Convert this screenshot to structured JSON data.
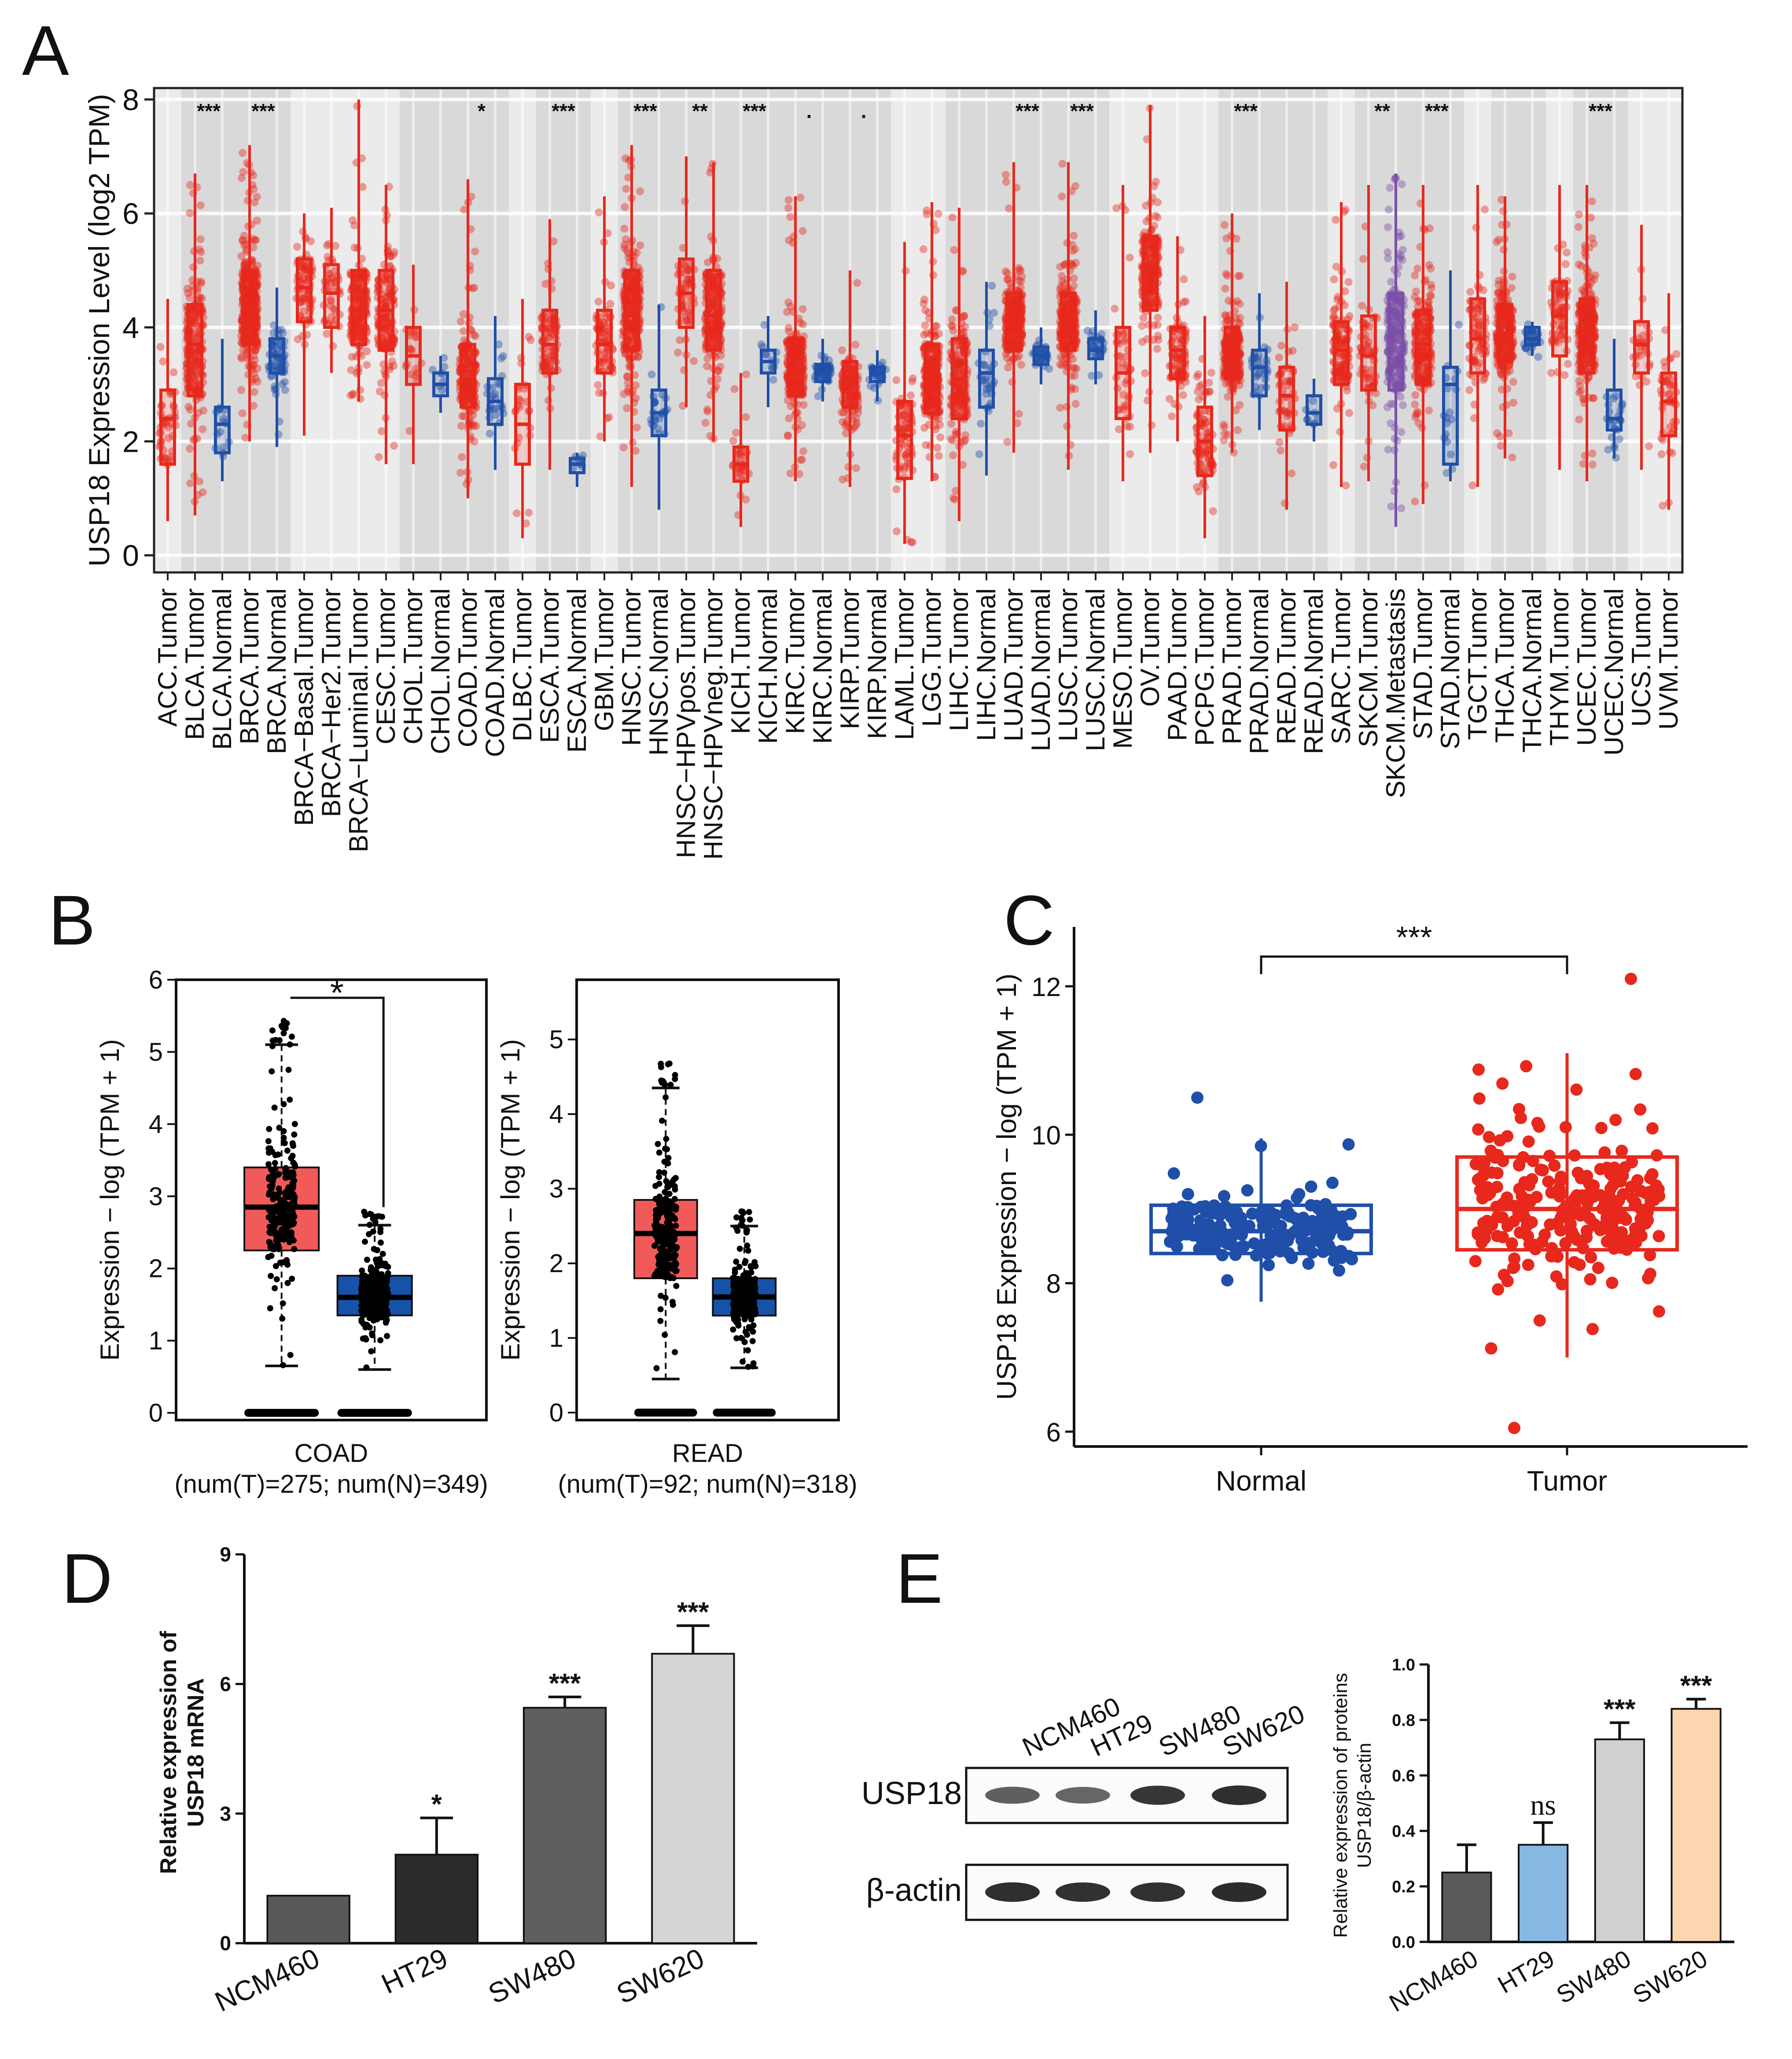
{
  "panel_labels": [
    "A",
    "B",
    "C",
    "D",
    "E"
  ],
  "colors": {
    "tumor": "#e8281c",
    "normal": "#1f4fa8",
    "metastasis": "#7b4fa8",
    "shade": "#d9d9d9",
    "gridbg": "#ebebeb",
    "gepia_tumor": "#f25a5a",
    "gepia_normal": "#1652a8",
    "bar_ncm460": "#585858",
    "bar_ht29": "#2b2b2b",
    "bar_sw480": "#5f5f5f",
    "bar_sw620": "#d5d5d5",
    "e_ncm460": "#5a5a5a",
    "e_ht29": "#86b8e3",
    "e_sw480": "#d0d0d0",
    "e_sw620": "#fbd6b0"
  },
  "chart_data": [
    {
      "id": "A",
      "type": "boxplot",
      "ylabel": "USP18 Expression Level (log2 TPM)",
      "ylim": [
        -0.3,
        8.2
      ],
      "yticks": [
        0,
        2,
        4,
        6,
        8
      ],
      "shaded_groups": [
        "BLCA",
        "BRCA",
        "CHOL",
        "COAD",
        "ESCA",
        "HNSC",
        "HNSC-HPV",
        "KICH",
        "KIRC",
        "KIRP",
        "LIHC",
        "LUAD",
        "LUSC",
        "PRAD",
        "READ",
        "SKCM",
        "STAD",
        "THCA",
        "UCEC"
      ],
      "categories": [
        "ACC.Tumor",
        "BLCA.Tumor",
        "BLCA.Normal",
        "BRCA.Tumor",
        "BRCA.Normal",
        "BRCA−Basal.Tumor",
        "BRCA−Her2.Tumor",
        "BRCA−Luminal.Tumor",
        "CESC.Tumor",
        "CHOL.Tumor",
        "CHOL.Normal",
        "COAD.Tumor",
        "COAD.Normal",
        "DLBC.Tumor",
        "ESCA.Tumor",
        "ESCA.Normal",
        "GBM.Tumor",
        "HNSC.Tumor",
        "HNSC.Normal",
        "HNSC−HPVpos.Tumor",
        "HNSC−HPVneg.Tumor",
        "KICH.Tumor",
        "KICH.Normal",
        "KIRC.Tumor",
        "KIRC.Normal",
        "KIRP.Tumor",
        "KIRP.Normal",
        "LAML.Tumor",
        "LGG.Tumor",
        "LIHC.Tumor",
        "LIHC.Normal",
        "LUAD.Tumor",
        "LUAD.Normal",
        "LUSC.Tumor",
        "LUSC.Normal",
        "MESO.Tumor",
        "OV.Tumor",
        "PAAD.Tumor",
        "PCPG.Tumor",
        "PRAD.Tumor",
        "PRAD.Normal",
        "READ.Tumor",
        "READ.Normal",
        "SARC.Tumor",
        "SKCM.Tumor",
        "SKCM.Metastasis",
        "STAD.Tumor",
        "STAD.Normal",
        "TGCT.Tumor",
        "THCA.Tumor",
        "THCA.Normal",
        "THYM.Tumor",
        "UCEC.Tumor",
        "UCEC.Normal",
        "UCS.Tumor",
        "UVM.Tumor"
      ],
      "group": [
        "ACC",
        "BLCA",
        "BLCA",
        "BRCA",
        "BRCA",
        "BRCA-B",
        "BRCA-H",
        "BRCA-L",
        "CESC",
        "CHOL",
        "CHOL",
        "COAD",
        "COAD",
        "DLBC",
        "ESCA",
        "ESCA",
        "GBM",
        "HNSC",
        "HNSC",
        "HNSC-HPV",
        "HNSC-HPV",
        "KICH",
        "KICH",
        "KIRC",
        "KIRC",
        "KIRP",
        "KIRP",
        "LAML",
        "LGG",
        "LIHC",
        "LIHC",
        "LUAD",
        "LUAD",
        "LUSC",
        "LUSC",
        "MESO",
        "OV",
        "PAAD",
        "PCPG",
        "PRAD",
        "PRAD",
        "READ",
        "READ",
        "SARC",
        "SKCM",
        "SKCM",
        "STAD",
        "STAD",
        "TGCT",
        "THCA",
        "THCA",
        "THYM",
        "UCEC",
        "UCEC",
        "UCS",
        "UVM"
      ],
      "kind": [
        "T",
        "T",
        "N",
        "T",
        "N",
        "T",
        "T",
        "T",
        "T",
        "T",
        "N",
        "T",
        "N",
        "T",
        "T",
        "N",
        "T",
        "T",
        "N",
        "T",
        "T",
        "T",
        "N",
        "T",
        "N",
        "T",
        "N",
        "T",
        "T",
        "T",
        "N",
        "T",
        "N",
        "T",
        "N",
        "T",
        "T",
        "T",
        "T",
        "T",
        "N",
        "T",
        "N",
        "T",
        "T",
        "M",
        "T",
        "N",
        "T",
        "T",
        "N",
        "T",
        "T",
        "N",
        "T",
        "T"
      ],
      "median": [
        2.4,
        3.7,
        2.3,
        4.3,
        3.5,
        4.7,
        4.6,
        4.3,
        4.3,
        3.5,
        3.0,
        3.1,
        2.7,
        2.3,
        3.7,
        1.6,
        3.7,
        4.2,
        2.5,
        4.6,
        4.2,
        1.6,
        3.4,
        3.3,
        3.2,
        3.0,
        3.2,
        2.1,
        3.1,
        3.1,
        3.2,
        4.1,
        3.5,
        4.1,
        3.6,
        3.2,
        5.0,
        3.6,
        2.0,
        3.5,
        3.3,
        2.8,
        2.5,
        3.6,
        3.5,
        3.9,
        3.7,
        3.0,
        3.8,
        3.9,
        3.8,
        4.2,
        3.9,
        2.4,
        3.7,
        2.7
      ],
      "q1": [
        1.6,
        2.8,
        1.8,
        3.7,
        3.2,
        4.1,
        4.0,
        3.7,
        3.6,
        3.0,
        2.8,
        2.6,
        2.3,
        1.6,
        3.2,
        1.45,
        3.2,
        3.6,
        2.1,
        4.0,
        3.6,
        1.3,
        3.2,
        2.8,
        3.05,
        2.6,
        3.05,
        1.35,
        2.5,
        2.4,
        2.6,
        3.6,
        3.35,
        3.6,
        3.45,
        2.4,
        4.3,
        3.1,
        1.4,
        3.1,
        2.8,
        2.2,
        2.3,
        3.0,
        2.9,
        2.9,
        3.0,
        1.6,
        3.2,
        3.4,
        3.7,
        3.5,
        3.2,
        2.2,
        3.2,
        2.1
      ],
      "q3": [
        2.9,
        4.4,
        2.6,
        5.0,
        3.8,
        5.2,
        5.1,
        5.0,
        5.0,
        4.0,
        3.2,
        3.7,
        3.1,
        3.0,
        4.3,
        1.7,
        4.3,
        5.0,
        2.9,
        5.2,
        5.0,
        1.9,
        3.6,
        3.8,
        3.35,
        3.4,
        3.3,
        2.7,
        3.7,
        3.8,
        3.6,
        4.6,
        3.65,
        4.6,
        3.8,
        4.0,
        5.6,
        4.0,
        2.6,
        4.0,
        3.6,
        3.3,
        2.8,
        4.1,
        4.2,
        4.6,
        4.3,
        3.3,
        4.5,
        4.4,
        4.0,
        4.8,
        4.5,
        2.9,
        4.1,
        3.2
      ],
      "wlo": [
        0.6,
        0.7,
        1.3,
        2.0,
        1.9,
        2.1,
        3.2,
        2.7,
        1.6,
        1.6,
        2.5,
        1.0,
        1.5,
        0.3,
        1.5,
        1.2,
        2.0,
        1.2,
        0.8,
        2.6,
        2.0,
        0.5,
        2.6,
        1.3,
        2.7,
        1.2,
        2.7,
        0.2,
        1.3,
        0.6,
        1.4,
        1.8,
        3.0,
        1.5,
        3.0,
        1.3,
        1.8,
        2.0,
        0.3,
        1.8,
        2.2,
        0.8,
        2.0,
        1.2,
        1.3,
        0.5,
        0.9,
        1.3,
        1.2,
        1.7,
        3.5,
        1.5,
        1.3,
        1.7,
        1.5,
        0.8
      ],
      "whi": [
        4.5,
        6.7,
        3.8,
        7.2,
        4.7,
        6.0,
        6.1,
        8.0,
        6.5,
        5.1,
        3.5,
        6.6,
        4.2,
        4.5,
        5.9,
        1.8,
        6.3,
        7.2,
        4.4,
        7.0,
        6.9,
        3.2,
        4.2,
        6.3,
        3.8,
        5.0,
        3.6,
        5.5,
        6.2,
        6.1,
        4.8,
        6.9,
        4.0,
        6.9,
        4.3,
        6.5,
        7.9,
        5.6,
        4.2,
        6.0,
        4.6,
        4.8,
        3.1,
        6.2,
        6.5,
        6.7,
        6.5,
        5.0,
        6.5,
        6.3,
        4.1,
        6.5,
        6.5,
        3.8,
        5.8,
        4.6
      ],
      "npts": [
        45,
        220,
        15,
        380,
        60,
        80,
        45,
        200,
        160,
        20,
        8,
        230,
        25,
        25,
        90,
        8,
        80,
        280,
        25,
        60,
        220,
        35,
        12,
        260,
        50,
        140,
        30,
        80,
        260,
        190,
        30,
        260,
        35,
        250,
        30,
        45,
        230,
        90,
        90,
        250,
        30,
        50,
        8,
        140,
        60,
        230,
        210,
        18,
        80,
        250,
        30,
        70,
        280,
        25,
        30,
        45
      ],
      "sig_groups": [
        "BLCA",
        "BRCA",
        "CHOL",
        "COAD",
        "ESCA",
        "HNSC",
        "HNSC-HPV",
        "KICH",
        "KIRC",
        "KIRP",
        "LIHC",
        "LUAD",
        "LUSC",
        "PRAD",
        "READ",
        "SKCM",
        "STAD",
        "THCA",
        "UCEC"
      ],
      "sig_labels": [
        "***",
        "***",
        "",
        "*",
        "***",
        "***",
        "**",
        "***",
        ".",
        ".",
        "",
        "***",
        "***",
        "***",
        "",
        "**",
        "***",
        "",
        "***"
      ]
    },
    {
      "id": "B_COAD",
      "type": "boxplot",
      "ylabel": "Expression − log (TPM + 1)",
      "xlabel": "COAD",
      "subtitle": "(num(T)=275; num(N)=349)",
      "ylim": [
        -0.1,
        6.0
      ],
      "yticks": [
        0,
        1,
        2,
        3,
        4,
        5,
        6
      ],
      "boxes": [
        {
          "name": "Tumor",
          "median": 2.85,
          "q1": 2.25,
          "q3": 3.4,
          "wlo": 0.65,
          "whi": 5.1
        },
        {
          "name": "Normal",
          "median": 1.6,
          "q1": 1.35,
          "q3": 1.9,
          "wlo": 0.6,
          "whi": 2.6
        }
      ],
      "significance": "*"
    },
    {
      "id": "B_READ",
      "type": "boxplot",
      "ylabel": "Expression − log (TPM + 1)",
      "xlabel": "READ",
      "subtitle": "(num(T)=92; num(N)=318)",
      "ylim": [
        -0.1,
        5.8
      ],
      "yticks": [
        0,
        1,
        2,
        3,
        4,
        5
      ],
      "boxes": [
        {
          "name": "Tumor",
          "median": 2.4,
          "q1": 1.8,
          "q3": 2.85,
          "wlo": 0.45,
          "whi": 4.35
        },
        {
          "name": "Normal",
          "median": 1.55,
          "q1": 1.3,
          "q3": 1.8,
          "wlo": 0.6,
          "whi": 2.5
        }
      ]
    },
    {
      "id": "C",
      "type": "boxplot",
      "ylabel": "USP18 Expression − log (TPM + 1)",
      "categories": [
        "Normal",
        "Tumor"
      ],
      "ylim": [
        5.8,
        12.8
      ],
      "yticks": [
        6,
        8,
        10,
        12
      ],
      "boxes": [
        {
          "name": "Normal",
          "median": 8.7,
          "q1": 8.4,
          "q3": 9.05,
          "wlo": 7.75,
          "whi": 9.95
        },
        {
          "name": "Tumor",
          "median": 9.0,
          "q1": 8.45,
          "q3": 9.7,
          "wlo": 7.0,
          "whi": 11.1
        }
      ],
      "significance": "***"
    },
    {
      "id": "D",
      "type": "bar",
      "ylabel": "Relative expression of USP18 mRNA",
      "categories": [
        "NCM460",
        "HT29",
        "SW480",
        "SW620"
      ],
      "values": [
        1.1,
        2.05,
        5.45,
        6.7
      ],
      "errors": [
        0,
        0.85,
        0.25,
        0.65
      ],
      "significance": [
        "",
        "*",
        "***",
        "***"
      ],
      "ylim": [
        0,
        9
      ],
      "yticks": [
        0,
        3,
        6,
        9
      ]
    },
    {
      "id": "E",
      "type": "bar",
      "ylabel": "Relative expression of proteins USP18/β-actin",
      "categories": [
        "NCM460",
        "HT29",
        "SW480",
        "SW620"
      ],
      "values": [
        0.25,
        0.35,
        0.73,
        0.84
      ],
      "errors": [
        0.1,
        0.08,
        0.06,
        0.035
      ],
      "significance": [
        "",
        "ns",
        "***",
        "***"
      ],
      "ylim": [
        0,
        1.0
      ],
      "yticks": [
        0.0,
        0.2,
        0.4,
        0.6,
        0.8,
        1.0
      ]
    }
  ],
  "western_blot": {
    "lanes": [
      "NCM460",
      "HT29",
      "SW480",
      "SW620"
    ],
    "rows": [
      {
        "label": "USP18",
        "intensity": [
          0.55,
          0.5,
          0.85,
          0.9
        ]
      },
      {
        "label": "β-actin",
        "intensity": [
          0.9,
          0.88,
          0.88,
          0.92
        ]
      }
    ]
  }
}
